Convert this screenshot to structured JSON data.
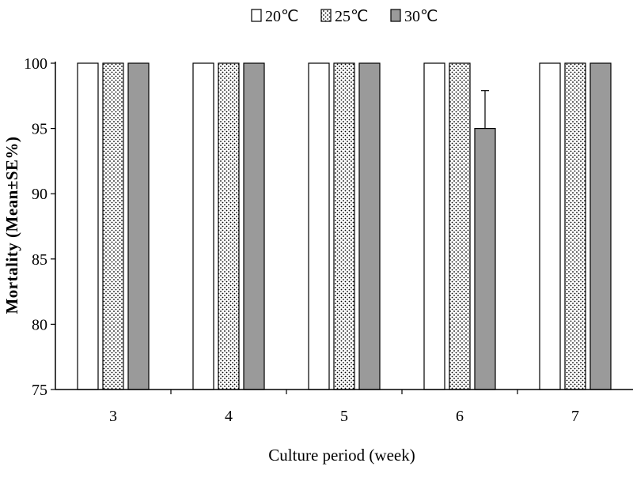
{
  "chart_data": {
    "type": "bar",
    "title": "",
    "xlabel": "Culture period (week)",
    "ylabel": "Mortality (Mean±SE%)",
    "categories": [
      "3",
      "4",
      "5",
      "6",
      "7"
    ],
    "ylim": [
      75,
      100
    ],
    "yticks": [
      75,
      80,
      85,
      90,
      95,
      100
    ],
    "grid": false,
    "legend_position": "top-center",
    "series": [
      {
        "name": "20℃",
        "values": [
          100,
          100,
          100,
          100,
          100
        ],
        "errors": [
          0,
          0,
          0,
          0,
          0
        ],
        "color": "#ffffff",
        "pattern": "none"
      },
      {
        "name": "25℃",
        "values": [
          100,
          100,
          100,
          100,
          100
        ],
        "errors": [
          0,
          0,
          0,
          0,
          0
        ],
        "color": "#f2f2f2",
        "pattern": "dots"
      },
      {
        "name": "30℃",
        "values": [
          100,
          100,
          100,
          95,
          100
        ],
        "errors": [
          0,
          0,
          0,
          2.9,
          0
        ],
        "color": "#9a9a9a",
        "pattern": "none"
      }
    ]
  }
}
